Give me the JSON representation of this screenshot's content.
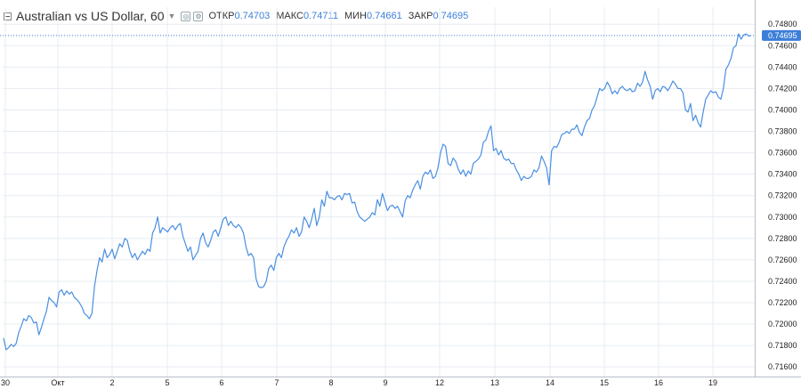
{
  "header": {
    "title": "Australian vs US Dollar, 60",
    "open_label": "ОТКР",
    "open_value": "0.74703",
    "high_label": "МАКС",
    "high_value": "0.74711",
    "low_label": "МИН",
    "low_value": "0.74661",
    "close_label": "ЗАКР",
    "close_value": "0.74695"
  },
  "colors": {
    "line": "#4a8fe2",
    "grid": "#e7ecf2",
    "last_price_bg": "#3d7fd8",
    "value_text": "#3d7fd8"
  },
  "chart_data": {
    "type": "line",
    "title": "Australian vs US Dollar, 60",
    "xlabel": "",
    "ylabel": "",
    "ylim": [
      0.7151,
      0.7496
    ],
    "grid": true,
    "y_ticks": [
      "0.74800",
      "0.74600",
      "0.74400",
      "0.74200",
      "0.74000",
      "0.73800",
      "0.73600",
      "0.73400",
      "0.73200",
      "0.73000",
      "0.72800",
      "0.72600",
      "0.72400",
      "0.72200",
      "0.72000",
      "0.71800",
      "0.71600"
    ],
    "x_ticks": [
      "30",
      "Окт",
      "2",
      "5",
      "6",
      "7",
      "8",
      "9",
      "12",
      "13",
      "14",
      "15",
      "16",
      "19"
    ],
    "last_price_label": "0.74695",
    "series": [
      {
        "values": [
          0.7187,
          0.7176,
          0.7178,
          0.7181,
          0.7179,
          0.7182,
          0.7192,
          0.7198,
          0.7205,
          0.7203,
          0.7208,
          0.7206,
          0.7201,
          0.7202,
          0.719,
          0.7197,
          0.7205,
          0.7212,
          0.7225,
          0.7222,
          0.722,
          0.7216,
          0.723,
          0.7232,
          0.7227,
          0.7231,
          0.7228,
          0.723,
          0.7225,
          0.7223,
          0.722,
          0.7216,
          0.721,
          0.7208,
          0.7205,
          0.721,
          0.7235,
          0.725,
          0.7262,
          0.7258,
          0.727,
          0.7262,
          0.7265,
          0.727,
          0.7261,
          0.7268,
          0.7275,
          0.7272,
          0.728,
          0.7278,
          0.7268,
          0.7262,
          0.7266,
          0.726,
          0.7264,
          0.7268,
          0.7265,
          0.727,
          0.7268,
          0.7285,
          0.729,
          0.73,
          0.7285,
          0.729,
          0.7288,
          0.7286,
          0.729,
          0.7292,
          0.7288,
          0.7292,
          0.7294,
          0.7282,
          0.7275,
          0.7268,
          0.7272,
          0.726,
          0.7264,
          0.7268,
          0.728,
          0.7285,
          0.7276,
          0.7272,
          0.7278,
          0.7286,
          0.7288,
          0.7282,
          0.729,
          0.7298,
          0.73,
          0.7292,
          0.7296,
          0.7292,
          0.729,
          0.7293,
          0.729,
          0.7285,
          0.7272,
          0.7264,
          0.7266,
          0.7262,
          0.7242,
          0.7235,
          0.7234,
          0.7235,
          0.724,
          0.7252,
          0.7255,
          0.725,
          0.7262,
          0.7266,
          0.7262,
          0.7272,
          0.7278,
          0.7282,
          0.7288,
          0.7285,
          0.729,
          0.7282,
          0.7286,
          0.73,
          0.7296,
          0.729,
          0.7298,
          0.7308,
          0.7292,
          0.73,
          0.7316,
          0.731,
          0.7324,
          0.7318,
          0.7318,
          0.7316,
          0.7319,
          0.732,
          0.7316,
          0.7322,
          0.7321,
          0.7322,
          0.7313,
          0.7314,
          0.7305,
          0.73,
          0.7298,
          0.7296,
          0.7298,
          0.73,
          0.7304,
          0.7302,
          0.7316,
          0.731,
          0.7322,
          0.7314,
          0.7306,
          0.731,
          0.7311,
          0.7308,
          0.731,
          0.7305,
          0.73,
          0.7315,
          0.732,
          0.7318,
          0.7325,
          0.733,
          0.7334,
          0.7326,
          0.7338,
          0.7342,
          0.734,
          0.7344,
          0.7336,
          0.7338,
          0.7346,
          0.736,
          0.7368,
          0.7366,
          0.735,
          0.7348,
          0.7355,
          0.7352,
          0.7345,
          0.734,
          0.7344,
          0.7338,
          0.7343,
          0.734,
          0.735,
          0.7352,
          0.7354,
          0.7358,
          0.737,
          0.7372,
          0.738,
          0.7385,
          0.7362,
          0.7364,
          0.7358,
          0.7362,
          0.7355,
          0.7353,
          0.7354,
          0.735,
          0.735,
          0.7344,
          0.734,
          0.7334,
          0.7338,
          0.7336,
          0.7336,
          0.7338,
          0.7344,
          0.7342,
          0.7346,
          0.7357,
          0.7352,
          0.7346,
          0.733,
          0.7362,
          0.7366,
          0.7365,
          0.737,
          0.7377,
          0.7378,
          0.738,
          0.7378,
          0.7382,
          0.7382,
          0.7386,
          0.7379,
          0.7376,
          0.7384,
          0.739,
          0.7392,
          0.74,
          0.7404,
          0.7412,
          0.742,
          0.7418,
          0.742,
          0.7426,
          0.7422,
          0.7415,
          0.7418,
          0.7415,
          0.742,
          0.7422,
          0.7419,
          0.7418,
          0.742,
          0.7417,
          0.7418,
          0.7425,
          0.7422,
          0.7426,
          0.7436,
          0.7428,
          0.7422,
          0.741,
          0.7418,
          0.742,
          0.7417,
          0.7422,
          0.7421,
          0.7418,
          0.7422,
          0.7427,
          0.7424,
          0.742,
          0.742,
          0.7416,
          0.74,
          0.7398,
          0.7406,
          0.739,
          0.7395,
          0.7388,
          0.7384,
          0.7398,
          0.741,
          0.7414,
          0.7418,
          0.7416,
          0.7417,
          0.7412,
          0.741,
          0.742,
          0.7438,
          0.7442,
          0.7448,
          0.7458,
          0.746,
          0.7471,
          0.7466,
          0.747,
          0.7471,
          0.7469,
          0.74695
        ]
      }
    ]
  }
}
